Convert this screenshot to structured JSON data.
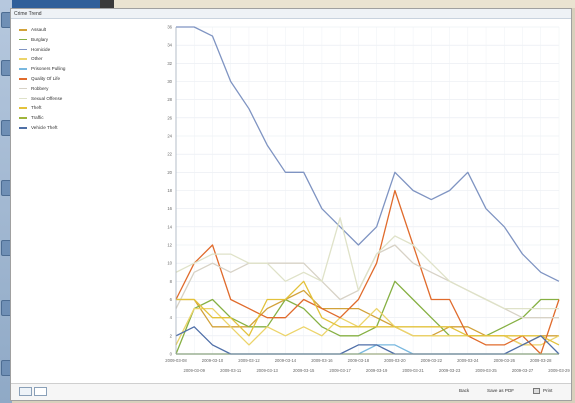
{
  "window": {
    "title": "Crime Trend"
  },
  "colors": {
    "Assault": "#d2a23a",
    "Burglary": "#86b043",
    "Homicide": "#7f94c2",
    "Other": "#ecd46a",
    "Prisoners Pulling": "#79b8df",
    "Quality Of Life": "#e06b2c",
    "Robbery": "#d7d2c6",
    "Sexual Offense": "#dfe2c8",
    "Theft": "#e3c23b",
    "Traffic": "#9fb43b",
    "Vehicle Theft": "#4f6fa8"
  },
  "chart_data": {
    "type": "line",
    "x": [
      "2009-03-08",
      "2009-03-09",
      "2009-03-10",
      "2009-03-11",
      "2009-03-12",
      "2009-03-13",
      "2009-03-14",
      "2009-03-15",
      "2009-03-16",
      "2009-03-17",
      "2009-03-18",
      "2009-03-19",
      "2009-03-20",
      "2009-03-21",
      "2009-03-22",
      "2009-03-23",
      "2009-03-24",
      "2009-03-25",
      "2009-03-26",
      "2009-03-27",
      "2009-03-28",
      "2009-03-29"
    ],
    "x_tick_labels_top": [
      "2009-03-08",
      "2009-03-10",
      "2009-03-12",
      "2009-03-14",
      "2009-03-16",
      "2009-03-18",
      "2009-03-20",
      "2009-03-22",
      "2009-03-24",
      "2009-03-26",
      "2009-03-28"
    ],
    "x_tick_labels_bottom": [
      "2009-03-09",
      "2009-03-11",
      "2009-03-13",
      "2009-03-15",
      "2009-03-17",
      "2009-03-19",
      "2009-03-21",
      "2009-03-23",
      "2009-03-25",
      "2009-03-27",
      "2009-03-29"
    ],
    "ylim": [
      0,
      36
    ],
    "yticks": [
      "0",
      "2",
      "4",
      "6",
      "8",
      "10",
      "12",
      "14",
      "16",
      "18",
      "20",
      "22",
      "24",
      "26",
      "28",
      "30",
      "32",
      "34",
      "36"
    ],
    "grid": true,
    "legend_position": "left",
    "series": [
      {
        "name": "Assault",
        "values": [
          6,
          6,
          3,
          3,
          3,
          5,
          6,
          7,
          5,
          5,
          5,
          4,
          3,
          2,
          2,
          3,
          3,
          2,
          2,
          1,
          2,
          2
        ]
      },
      {
        "name": "Burglary",
        "values": [
          0,
          5,
          6,
          4,
          3,
          3,
          6,
          5,
          3,
          2,
          2,
          3,
          8,
          6,
          4,
          2,
          2,
          2,
          3,
          4,
          6,
          6
        ]
      },
      {
        "name": "Homicide",
        "values": [
          36,
          36,
          35,
          30,
          27,
          23,
          20,
          20,
          16,
          14,
          12,
          14,
          20,
          18,
          17,
          18,
          20,
          16,
          14,
          11,
          9,
          8
        ]
      },
      {
        "name": "Other",
        "values": [
          1,
          5,
          5,
          3,
          1,
          3,
          2,
          3,
          2,
          4,
          3,
          5,
          3,
          2,
          2,
          2,
          2,
          2,
          2,
          1,
          1,
          2
        ]
      },
      {
        "name": "Prisoners Pulling",
        "values": [
          0,
          0,
          0,
          0,
          0,
          0,
          0,
          0,
          0,
          0,
          0,
          1,
          1,
          0,
          0,
          0,
          0,
          0,
          0,
          0,
          0,
          0
        ]
      },
      {
        "name": "Quality Of Life",
        "values": [
          6,
          10,
          12,
          6,
          5,
          4,
          4,
          6,
          5,
          4,
          6,
          10,
          18,
          12,
          6,
          6,
          2,
          1,
          1,
          2,
          0,
          6
        ]
      },
      {
        "name": "Robbery",
        "values": [
          5,
          9,
          10,
          9,
          10,
          10,
          10,
          10,
          8,
          6,
          7,
          11,
          12,
          10,
          9,
          8,
          7,
          6,
          5,
          4,
          4,
          4
        ]
      },
      {
        "name": "Sexual Offense",
        "values": [
          9,
          10,
          11,
          11,
          10,
          10,
          8,
          9,
          8,
          15,
          7,
          11,
          13,
          12,
          10,
          8,
          7,
          6,
          5,
          5,
          5,
          5
        ]
      },
      {
        "name": "Theft",
        "values": [
          6,
          6,
          4,
          4,
          2,
          6,
          6,
          8,
          4,
          3,
          3,
          3,
          3,
          3,
          3,
          3,
          2,
          2,
          2,
          2,
          2,
          1
        ]
      },
      {
        "name": "Traffic",
        "values": [
          0,
          0,
          0,
          0,
          0,
          0,
          0,
          0,
          0,
          0,
          0,
          0,
          0,
          0,
          0,
          0,
          0,
          0,
          0,
          0,
          0,
          0
        ]
      },
      {
        "name": "Vehicle Theft",
        "values": [
          2,
          3,
          1,
          0,
          0,
          0,
          0,
          0,
          0,
          0,
          1,
          1,
          0,
          0,
          0,
          0,
          0,
          0,
          0,
          1,
          2,
          0
        ]
      }
    ]
  },
  "footer": {
    "back_label": "Back",
    "save_pdf_label": "Save as PDF",
    "print_label": "Print"
  }
}
